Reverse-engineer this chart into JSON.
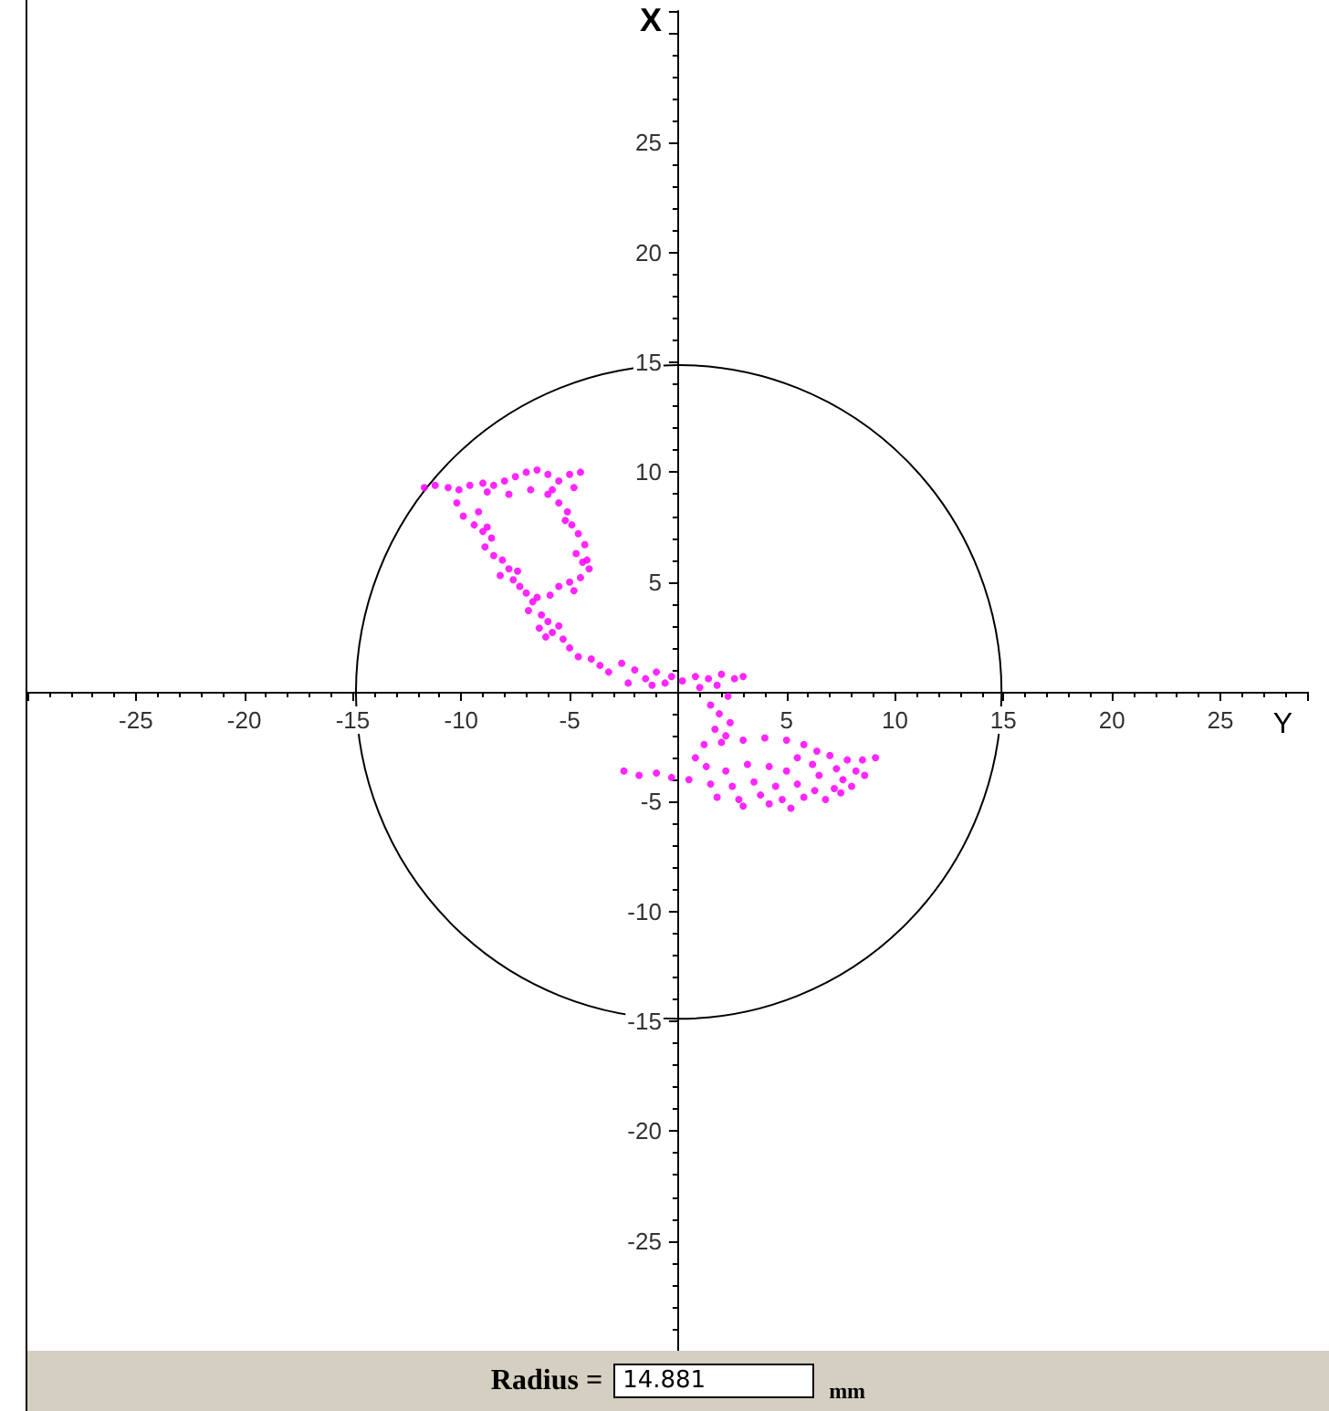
{
  "chart_data": {
    "type": "scatter",
    "xlabel": "Y",
    "ylabel": "X",
    "xlim": [
      -30,
      29
    ],
    "ylim": [
      -30,
      31
    ],
    "xticks": [
      -25,
      -20,
      -15,
      -10,
      -5,
      5,
      10,
      15,
      20,
      25
    ],
    "yticks": [
      -25,
      -20,
      -15,
      -10,
      -5,
      5,
      10,
      15,
      20,
      25
    ],
    "grid": false,
    "marker": "circle",
    "annotations": [
      "Radius =",
      "14.881",
      "mm"
    ],
    "series": [
      {
        "color": "#ff00ff",
        "x": [
          -11.7,
          -11.2,
          -10.6,
          -10.1,
          -9.6,
          -9.0,
          -8.5,
          -8.0,
          -7.5,
          -7.0,
          -6.5,
          -6.0,
          -5.5,
          -5.0,
          -4.5,
          -8.8,
          -7.8,
          -6.8,
          -5.8,
          -4.8,
          -10.2,
          -9.9,
          -9.4,
          -9.0,
          -8.6,
          -8.9,
          -8.5,
          -8.1,
          -7.8,
          -8.2,
          -7.6,
          -7.3,
          -7.0,
          -6.7,
          -6.9,
          -6.3,
          -6.0,
          -6.4,
          -5.8,
          -5.5,
          -6.1,
          -5.3,
          -6.5,
          -7.4,
          -8.8,
          -9.2,
          -6.0,
          -5.5,
          -5.1,
          -4.9,
          -4.6,
          -4.3,
          -4.7,
          -4.4,
          -4.1,
          -4.5,
          -5.0,
          -5.5,
          -4.8,
          -5.9,
          -4.2,
          -5.2,
          -5.0,
          -4.6,
          -4.0,
          -3.6,
          -3.2,
          -2.6,
          -2.0,
          -1.5,
          -1.0,
          -0.6,
          -2.3,
          -1.2,
          -0.3,
          0.2,
          0.8,
          1.4,
          2.0,
          2.6,
          3.0,
          1.0,
          1.8,
          2.3,
          1.5,
          1.9,
          2.4,
          1.7,
          2.2,
          1.2,
          2.0,
          3.0,
          4.0,
          5.0,
          5.8,
          6.4,
          7.0,
          7.8,
          8.5,
          9.1,
          0.8,
          1.3,
          5.5,
          6.2,
          7.3,
          8.2,
          2.2,
          3.2,
          4.2,
          5.0,
          6.5,
          7.6,
          8.6,
          0.5,
          1.5,
          2.5,
          3.5,
          4.5,
          5.5,
          6.3,
          7.2,
          8.0,
          1.8,
          2.8,
          3.8,
          4.8,
          5.8,
          6.8,
          7.5,
          3.0,
          4.2,
          5.2,
          -2.5,
          -1.8,
          -1.0,
          -0.3
        ],
        "values": [
          9.3,
          9.4,
          9.3,
          9.2,
          9.4,
          9.5,
          9.4,
          9.6,
          9.8,
          10.0,
          10.1,
          9.9,
          9.6,
          9.9,
          10.0,
          9.1,
          9.0,
          9.2,
          9.2,
          9.3,
          8.6,
          8.0,
          7.6,
          7.3,
          7.0,
          6.6,
          6.2,
          6.0,
          5.6,
          5.3,
          5.1,
          4.8,
          4.5,
          4.1,
          3.7,
          3.5,
          3.2,
          2.9,
          2.7,
          3.0,
          2.5,
          2.4,
          4.3,
          5.5,
          7.5,
          8.2,
          9.0,
          8.6,
          8.2,
          7.6,
          7.2,
          6.7,
          6.3,
          5.9,
          5.6,
          5.2,
          5.0,
          4.8,
          4.6,
          4.4,
          6.0,
          7.8,
          2.0,
          1.6,
          1.5,
          1.2,
          0.9,
          1.3,
          1.0,
          0.6,
          0.9,
          0.4,
          0.4,
          0.3,
          0.7,
          0.5,
          0.7,
          0.6,
          0.8,
          0.6,
          0.7,
          0.2,
          0.3,
          -0.2,
          -0.6,
          -1.0,
          -1.4,
          -1.7,
          -2.0,
          -2.4,
          -2.3,
          -2.2,
          -2.1,
          -2.2,
          -2.4,
          -2.7,
          -2.9,
          -3.1,
          -3.1,
          -3.0,
          -3.0,
          -3.4,
          -3.0,
          -3.3,
          -3.5,
          -3.6,
          -3.6,
          -3.3,
          -3.4,
          -3.6,
          -3.8,
          -4.0,
          -3.8,
          -4.0,
          -4.2,
          -4.3,
          -4.1,
          -4.3,
          -4.2,
          -4.5,
          -4.4,
          -4.3,
          -4.8,
          -4.9,
          -4.7,
          -4.9,
          -4.8,
          -4.9,
          -4.6,
          -5.2,
          -5.1,
          -5.3,
          -3.6,
          -3.8,
          -3.7,
          -3.9
        ]
      }
    ]
  }
}
